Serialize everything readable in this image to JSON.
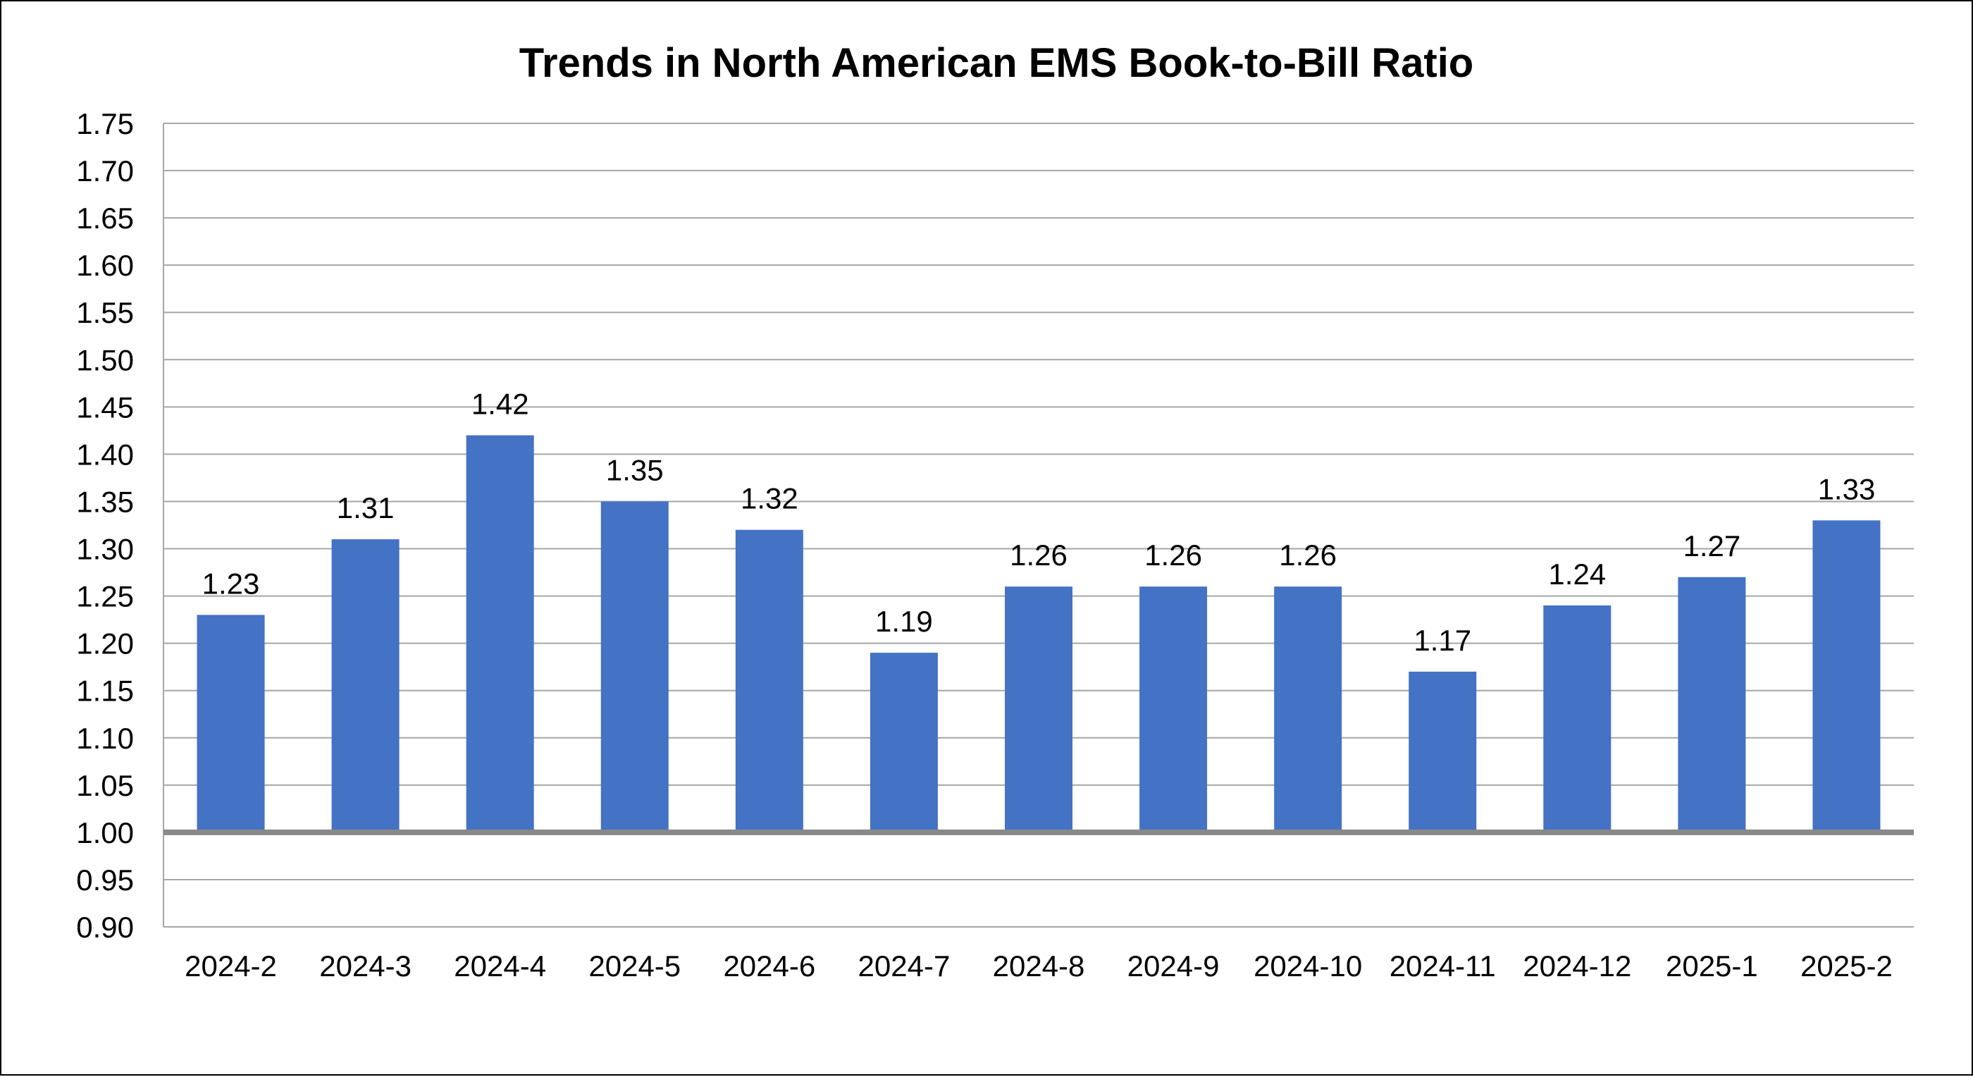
{
  "chart_data": {
    "type": "bar",
    "title": "Trends in North American EMS Book-to-Bill Ratio",
    "xlabel": "",
    "ylabel": "",
    "categories": [
      "2024-2",
      "2024-3",
      "2024-4",
      "2024-5",
      "2024-6",
      "2024-7",
      "2024-8",
      "2024-9",
      "2024-10",
      "2024-11",
      "2024-12",
      "2025-1",
      "2025-2"
    ],
    "values": [
      1.23,
      1.31,
      1.42,
      1.35,
      1.32,
      1.19,
      1.26,
      1.26,
      1.26,
      1.17,
      1.24,
      1.27,
      1.33
    ],
    "data_labels": [
      "1.23",
      "1.31",
      "1.42",
      "1.35",
      "1.32",
      "1.19",
      "1.26",
      "1.26",
      "1.26",
      "1.17",
      "1.24",
      "1.27",
      "1.33"
    ],
    "y_ticks": [
      "1.75",
      "1.70",
      "1.65",
      "1.60",
      "1.55",
      "1.50",
      "1.45",
      "1.40",
      "1.35",
      "1.30",
      "1.25",
      "1.20",
      "1.15",
      "1.10",
      "1.05",
      "1.00",
      "0.95",
      "0.90"
    ],
    "ylim": [
      0.9,
      1.75
    ],
    "y_step": 0.05,
    "baseline": 1.0,
    "grid": true,
    "legend": "none",
    "colors": {
      "bar": "#4472C4",
      "grid": "#A6A6A6",
      "baseline": "#898989",
      "text": "#000000",
      "border": "#000000"
    }
  }
}
